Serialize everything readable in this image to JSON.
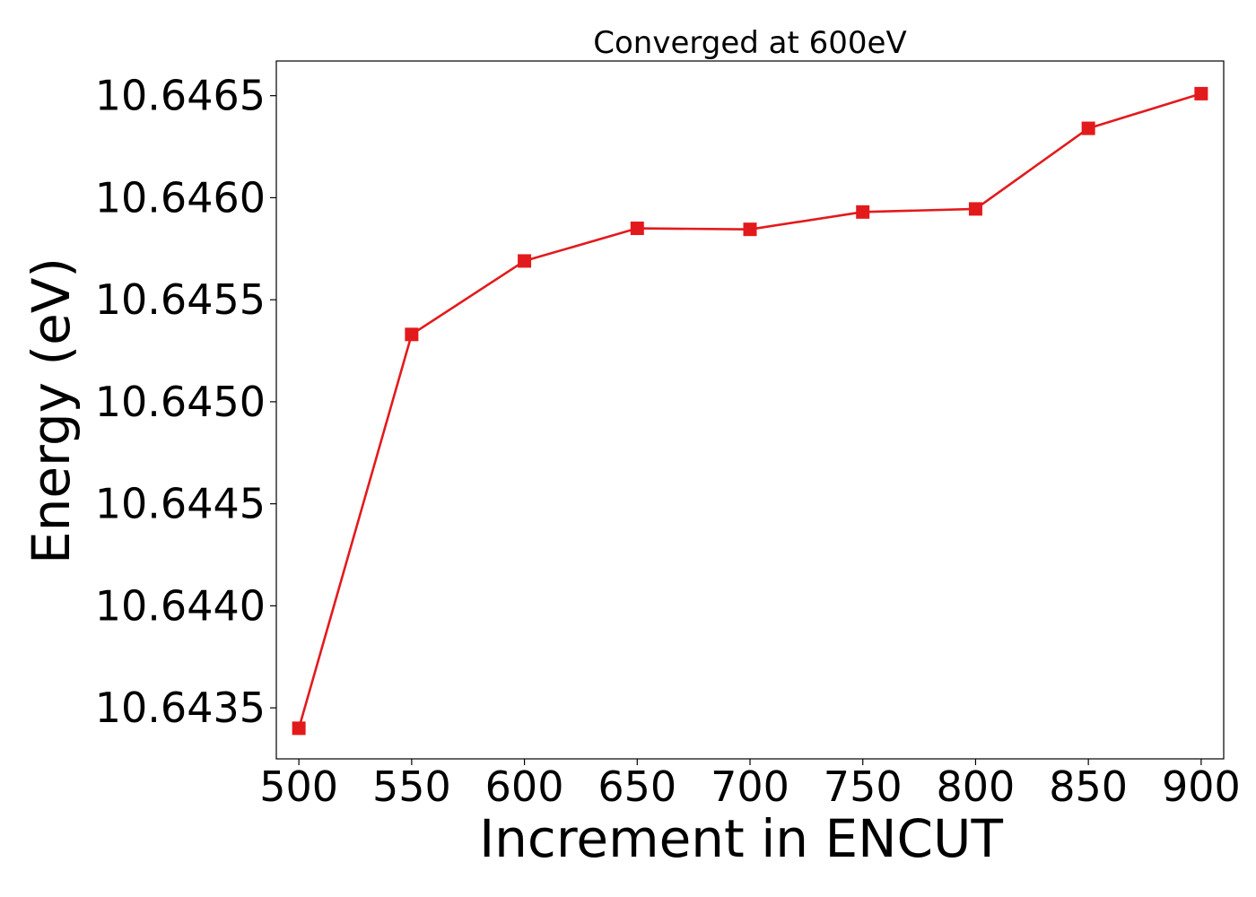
{
  "chart_data": {
    "type": "line",
    "title": "Converged at 600eV",
    "xlabel": "Increment in ENCUT",
    "ylabel": "Energy (eV)",
    "x": [
      500,
      550,
      600,
      650,
      700,
      750,
      800,
      850,
      900
    ],
    "series": [
      {
        "values": [
          10.6434,
          10.64533,
          10.64569,
          10.64585,
          10.645845,
          10.64593,
          10.645945,
          10.64634,
          10.64651
        ],
        "color": "#e31a1c",
        "marker": "square"
      }
    ],
    "xticks": [
      500,
      550,
      600,
      650,
      700,
      750,
      800,
      850,
      900
    ],
    "xtick_labels": [
      "500",
      "550",
      "600",
      "650",
      "700",
      "750",
      "800",
      "850",
      "900"
    ],
    "yticks": [
      10.6435,
      10.644,
      10.6445,
      10.645,
      10.6455,
      10.646,
      10.6465
    ],
    "ytick_labels": [
      "10.6435",
      "10.6440",
      "10.6445",
      "10.6450",
      "10.6455",
      "10.6460",
      "10.6465"
    ],
    "xlim": [
      490,
      910
    ],
    "ylim": [
      10.64325,
      10.64667
    ],
    "grid": false,
    "legend": false
  }
}
